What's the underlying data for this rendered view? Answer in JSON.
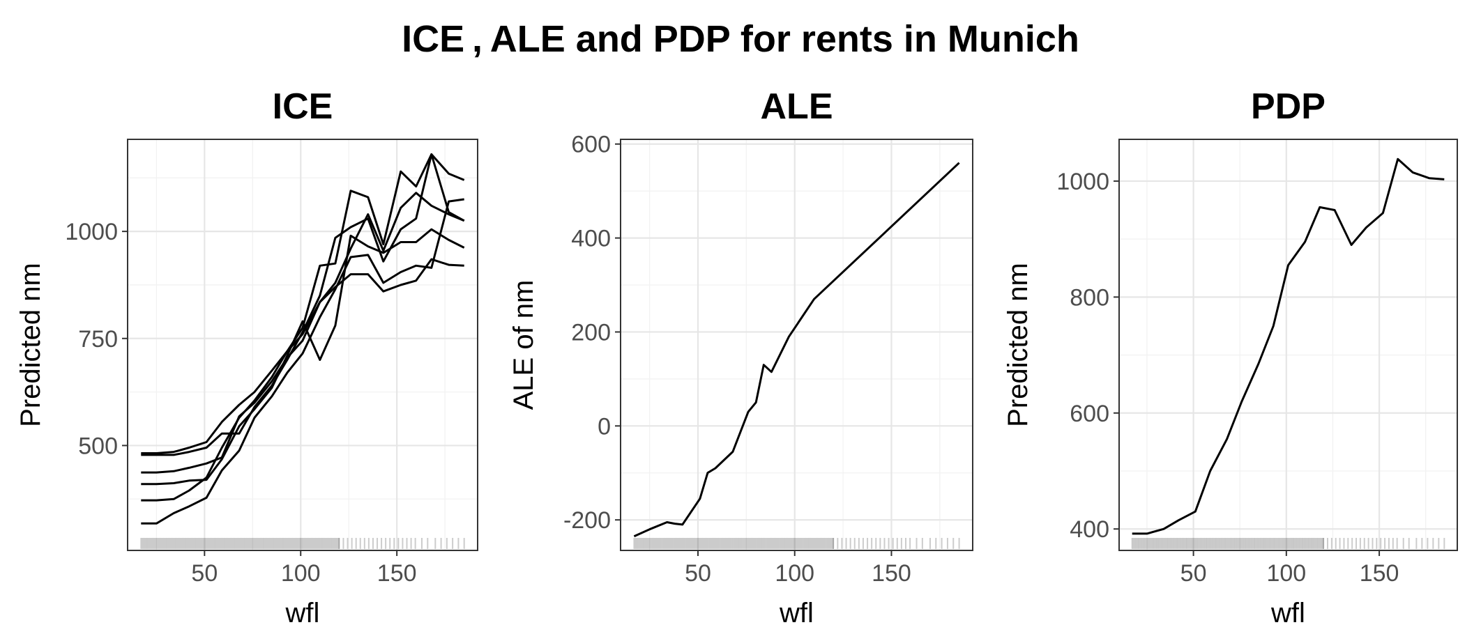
{
  "title": "ICE , ALE and PDP for rents in Munich",
  "chart_data": [
    {
      "type": "line",
      "title": "ICE",
      "xlabel": "wfl",
      "ylabel": "Predicted nm",
      "xlim": [
        10,
        192
      ],
      "ylim": [
        255,
        1215
      ],
      "xticks": [
        50,
        100,
        150
      ],
      "yticks": [
        500,
        750,
        1000
      ],
      "ytick_labels": [
        "500",
        "750",
        "1000"
      ],
      "grid": true,
      "x": [
        17,
        25,
        34,
        42,
        51,
        59,
        68,
        76,
        85,
        93,
        101,
        110,
        118,
        126,
        135,
        143,
        152,
        160,
        168,
        177,
        185
      ],
      "series": [
        {
          "values": [
            482,
            482,
            485,
            495,
            508,
            555,
            595,
            625,
            675,
            720,
            775,
            920,
            925,
            1095,
            1080,
            970,
            1140,
            1105,
            1180,
            1135,
            1120
          ]
        },
        {
          "values": [
            478,
            478,
            478,
            485,
            495,
            528,
            528,
            590,
            640,
            700,
            765,
            850,
            985,
            1010,
            1030,
            930,
            1005,
            1030,
            1180,
            1045,
            1025
          ]
        },
        {
          "values": [
            437,
            437,
            440,
            448,
            458,
            472,
            568,
            600,
            650,
            705,
            745,
            835,
            880,
            960,
            1040,
            955,
            1055,
            1090,
            1060,
            1040,
            1025
          ]
        },
        {
          "values": [
            410,
            410,
            412,
            418,
            420,
            468,
            545,
            585,
            635,
            710,
            790,
            700,
            780,
            990,
            965,
            950,
            975,
            975,
            1005,
            980,
            962
          ]
        },
        {
          "values": [
            372,
            372,
            375,
            395,
            425,
            495,
            565,
            605,
            660,
            720,
            760,
            835,
            870,
            900,
            900,
            860,
            875,
            885,
            935,
            922,
            920
          ]
        },
        {
          "values": [
            318,
            318,
            342,
            358,
            378,
            442,
            488,
            565,
            615,
            670,
            715,
            800,
            865,
            940,
            945,
            880,
            905,
            920,
            915,
            1070,
            1075
          ]
        }
      ]
    },
    {
      "type": "line",
      "title": "ALE",
      "xlabel": "wfl",
      "ylabel": "ALE of nm",
      "xlim": [
        10,
        192
      ],
      "ylim": [
        -265,
        610
      ],
      "xticks": [
        50,
        100,
        150
      ],
      "yticks": [
        -200,
        0,
        200,
        400,
        600
      ],
      "ytick_labels": [
        "-200",
        "0",
        "200",
        "400",
        "600"
      ],
      "grid": true,
      "x": [
        17,
        25,
        34,
        38,
        42,
        51,
        55,
        59,
        68,
        76,
        80,
        84,
        88,
        97,
        110,
        185
      ],
      "values": [
        -235,
        -220,
        -205,
        -208,
        -210,
        -155,
        -100,
        -90,
        -55,
        30,
        50,
        130,
        115,
        190,
        270,
        560
      ]
    },
    {
      "type": "line",
      "title": "PDP",
      "xlabel": "wfl",
      "ylabel": "Predicted nm",
      "xlim": [
        10,
        192
      ],
      "ylim": [
        363,
        1072
      ],
      "xticks": [
        50,
        100,
        150
      ],
      "yticks": [
        400,
        600,
        800,
        1000
      ],
      "ytick_labels": [
        "400",
        "600",
        "800",
        "1000"
      ],
      "grid": true,
      "x": [
        17,
        25,
        34,
        42,
        51,
        59,
        68,
        76,
        85,
        93,
        101,
        110,
        118,
        126,
        135,
        143,
        152,
        160,
        168,
        177,
        185
      ],
      "values": [
        392,
        392,
        400,
        415,
        430,
        500,
        555,
        620,
        685,
        750,
        855,
        895,
        955,
        950,
        890,
        920,
        945,
        1038,
        1015,
        1005,
        1003
      ]
    }
  ]
}
